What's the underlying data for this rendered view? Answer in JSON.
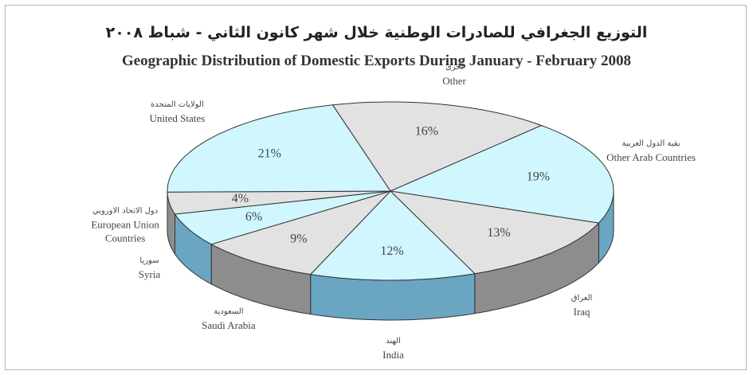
{
  "chart_data": {
    "type": "pie",
    "title": "التوزيع الجغرافي للصادرات الوطنية خلال شهر كانون الثاني - شباط ٢٠٠٨",
    "subtitle": "Geographic Distribution of Domestic Exports During  January - February 2008",
    "categories": [
      "Other",
      "Other Arab Countries",
      "Iraq",
      "India",
      "Saudi Arabia",
      "Syria",
      "European Union Countries",
      "United States"
    ],
    "categories_ar": [
      "أخرى",
      "بقية الدول العربية",
      "العراق",
      "الهند",
      "السعودية",
      "سوريا",
      "دول الاتحاد الاوروبي",
      "الولايات المتحدة"
    ],
    "values": [
      16,
      19,
      13,
      12,
      9,
      6,
      4,
      21
    ],
    "value_labels": [
      "16%",
      "19%",
      "13%",
      "12%",
      "9%",
      "6%",
      "4%",
      "21%"
    ],
    "colors": [
      "#e2e2e2",
      "#cff7fd",
      "#e2e2e2",
      "#cff7fd",
      "#e2e2e2",
      "#cff7fd",
      "#e2e2e2",
      "#cff7fd"
    ],
    "side_colors": [
      "#8d8d8d",
      "#6aa6c2",
      "#8d8d8d",
      "#6aa6c2",
      "#8d8d8d",
      "#6aa6c2",
      "#8d8d8d",
      "#6aa6c2"
    ]
  }
}
